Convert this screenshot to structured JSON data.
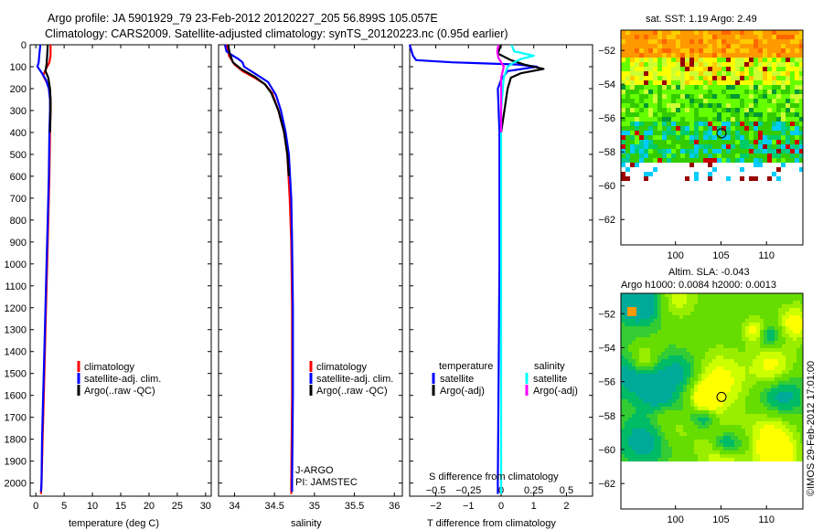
{
  "header": {
    "line1": "Argo profile: JA 5901929_79 23-Feb-2012 20120227_205 56.899S 105.057E",
    "line2": "Climatology: CARS2009. Satellite-adjusted climatology: synTS_20120223.nc (0.95d earlier)"
  },
  "colors": {
    "climatology": "#ff0000",
    "satellite": "#0000ff",
    "argo": "#000000",
    "satellite_salinity": "#00ffff",
    "argo_salinity": "#ff00ff"
  },
  "chart_data": [
    {
      "type": "line",
      "name": "temperature-profile",
      "xlabel": "temperature (deg C)",
      "ylabel": "",
      "xlim": [
        -1,
        31
      ],
      "ylim": [
        2060,
        0
      ],
      "xticks": [
        0,
        5,
        10,
        15,
        20,
        25,
        30
      ],
      "yticks": [
        0,
        100,
        200,
        300,
        400,
        500,
        600,
        700,
        800,
        900,
        1000,
        1100,
        1200,
        1300,
        1400,
        1500,
        1600,
        1700,
        1800,
        1900,
        2000
      ],
      "legend": [
        "climatology",
        "satellite-adj. clim.",
        "Argo(..raw -QC)"
      ],
      "legend_position": "lower-middle",
      "series": [
        {
          "name": "climatology",
          "color": "#ff0000",
          "points": [
            [
              2.6,
              0
            ],
            [
              2.6,
              50
            ],
            [
              2.4,
              80
            ],
            [
              1.8,
              110
            ],
            [
              1.3,
              140
            ],
            [
              1.9,
              170
            ],
            [
              2.4,
              200
            ],
            [
              2.6,
              250
            ],
            [
              2.6,
              300
            ],
            [
              2.5,
              400
            ],
            [
              2.4,
              600
            ],
            [
              2.2,
              800
            ],
            [
              2.0,
              1000
            ],
            [
              1.8,
              1200
            ],
            [
              1.6,
              1400
            ],
            [
              1.4,
              1600
            ],
            [
              1.2,
              1800
            ],
            [
              1.0,
              2000
            ],
            [
              0.9,
              2050
            ]
          ]
        },
        {
          "name": "satellite-adj. clim.",
          "color": "#0000ff",
          "points": [
            [
              0.8,
              0
            ],
            [
              0.6,
              50
            ],
            [
              0.5,
              80
            ],
            [
              0.3,
              100
            ],
            [
              1.1,
              130
            ],
            [
              1.8,
              160
            ],
            [
              2.3,
              200
            ],
            [
              2.5,
              250
            ],
            [
              2.5,
              300
            ],
            [
              2.4,
              400
            ],
            [
              2.3,
              600
            ],
            [
              2.1,
              800
            ],
            [
              1.9,
              1000
            ],
            [
              1.7,
              1200
            ],
            [
              1.5,
              1400
            ],
            [
              1.3,
              1600
            ],
            [
              1.1,
              1800
            ],
            [
              1.0,
              2000
            ],
            [
              0.9,
              2040
            ]
          ]
        },
        {
          "name": "Argo(..raw -QC)",
          "color": "#000000",
          "points": [
            [
              2.1,
              0
            ],
            [
              2.0,
              50
            ],
            [
              1.9,
              90
            ],
            [
              1.7,
              120
            ],
            [
              2.2,
              150
            ],
            [
              2.5,
              200
            ],
            [
              2.6,
              250
            ],
            [
              2.6,
              300
            ],
            [
              2.5,
              400
            ]
          ]
        }
      ]
    },
    {
      "type": "line",
      "name": "salinity-profile",
      "xlabel": "salinity",
      "xlim": [
        33.8,
        36.1
      ],
      "ylim": [
        2060,
        0
      ],
      "xticks": [
        34,
        34.5,
        35,
        35.5,
        36
      ],
      "legend": [
        "climatology",
        "satellite-adj. clim.",
        "Argo(..raw -QC)"
      ],
      "legend_position": "lower-right",
      "annotation": [
        "J-ARGO",
        "PI: JAMSTEC"
      ],
      "series": [
        {
          "name": "climatology",
          "color": "#ff0000",
          "points": [
            [
              33.9,
              0
            ],
            [
              33.93,
              50
            ],
            [
              34.0,
              90
            ],
            [
              34.1,
              120
            ],
            [
              34.25,
              150
            ],
            [
              34.38,
              180
            ],
            [
              34.47,
              220
            ],
            [
              34.55,
              300
            ],
            [
              34.62,
              400
            ],
            [
              34.66,
              500
            ],
            [
              34.69,
              700
            ],
            [
              34.71,
              900
            ],
            [
              34.72,
              1200
            ],
            [
              34.72,
              1600
            ],
            [
              34.71,
              2000
            ],
            [
              34.71,
              2050
            ]
          ]
        },
        {
          "name": "satellite-adj. clim.",
          "color": "#0000ff",
          "points": [
            [
              33.88,
              0
            ],
            [
              33.9,
              30
            ],
            [
              33.98,
              50
            ],
            [
              34.05,
              65
            ],
            [
              34.1,
              80
            ],
            [
              34.12,
              100
            ],
            [
              34.25,
              130
            ],
            [
              34.42,
              170
            ],
            [
              34.52,
              230
            ],
            [
              34.58,
              300
            ],
            [
              34.64,
              400
            ],
            [
              34.68,
              500
            ],
            [
              34.71,
              700
            ],
            [
              34.72,
              900
            ],
            [
              34.73,
              1200
            ],
            [
              34.73,
              1600
            ],
            [
              34.72,
              2000
            ],
            [
              34.72,
              2040
            ]
          ]
        },
        {
          "name": "Argo(..raw -QC)",
          "color": "#000000",
          "points": [
            [
              33.92,
              0
            ],
            [
              33.94,
              40
            ],
            [
              33.98,
              80
            ],
            [
              34.08,
              110
            ],
            [
              34.25,
              145
            ],
            [
              34.38,
              180
            ],
            [
              34.46,
              220
            ],
            [
              34.55,
              300
            ],
            [
              34.62,
              400
            ],
            [
              34.66,
              500
            ],
            [
              34.68,
              600
            ]
          ]
        }
      ]
    },
    {
      "type": "line",
      "name": "difference-profile",
      "xlabel": "T difference from climatology",
      "x2label": "S difference from climatology",
      "xlim": [
        -2.8,
        2.8
      ],
      "ylim": [
        2060,
        0
      ],
      "xticks": [
        -2,
        -1,
        0,
        1,
        2
      ],
      "xtick_labels": [
        "−2",
        "−1",
        "0",
        "1",
        "2"
      ],
      "x2lim": [
        -0.7,
        0.7
      ],
      "x2ticks": [
        -0.5,
        -0.25,
        0,
        0.25,
        0.5
      ],
      "x2tick_labels": [
        "−0.5",
        "−0.25",
        "0",
        "0.25",
        "0.5"
      ],
      "legend_titles": [
        "temperature",
        "salinity"
      ],
      "legend": [
        "satellite",
        "Argo(-adj)",
        "satellite",
        "Argo(-adj)"
      ],
      "legend_position": "lower-middle",
      "series": [
        {
          "name": "temperature satellite",
          "color": "#0000ff",
          "points": [
            [
              -2.8,
              0
            ],
            [
              -2.7,
              50
            ],
            [
              -2.6,
              70
            ],
            [
              -1.5,
              80
            ],
            [
              0.5,
              90
            ],
            [
              1.1,
              100
            ],
            [
              0.2,
              120
            ],
            [
              0.0,
              160
            ],
            [
              -0.1,
              200
            ],
            [
              -0.05,
              400
            ],
            [
              -0.05,
              1000
            ],
            [
              -0.1,
              2000
            ],
            [
              -0.1,
              2050
            ]
          ]
        },
        {
          "name": "temperature Argo(-adj)",
          "color": "#000000",
          "points": [
            [
              0.0,
              0
            ],
            [
              -0.1,
              40
            ],
            [
              0.3,
              70
            ],
            [
              0.7,
              90
            ],
            [
              1.3,
              110
            ],
            [
              0.6,
              130
            ],
            [
              0.3,
              150
            ],
            [
              0.2,
              200
            ],
            [
              0.1,
              300
            ],
            [
              0.0,
              400
            ]
          ]
        },
        {
          "name": "salinity satellite",
          "color": "#00ffff",
          "points": [
            [
              0.08,
              0
            ],
            [
              0.1,
              30
            ],
            [
              0.25,
              50
            ],
            [
              0.15,
              65
            ],
            [
              0.1,
              80
            ],
            [
              0.05,
              100
            ],
            [
              0.02,
              150
            ],
            [
              0.0,
              300
            ],
            [
              0.0,
              1000
            ],
            [
              0.0,
              2050
            ]
          ]
        },
        {
          "name": "salinity Argo(-adj)",
          "color": "#ff00ff",
          "points": [
            [
              -0.02,
              0
            ],
            [
              -0.03,
              30
            ],
            [
              -0.02,
              60
            ],
            [
              0.0,
              80
            ],
            [
              0.02,
              100
            ],
            [
              0.0,
              150
            ],
            [
              0.0,
              250
            ],
            [
              0.0,
              400
            ]
          ]
        }
      ]
    },
    {
      "type": "heatmap",
      "name": "sst-map",
      "title": "sat. SST: 1.19  Argo: 2.49",
      "xlim": [
        94,
        114
      ],
      "ylim": [
        -63.5,
        -50.8
      ],
      "xticks": [
        100,
        105,
        110
      ],
      "yticks": [
        -52,
        -54,
        -56,
        -58,
        -60,
        -62
      ],
      "ytick_labels": [
        "−52",
        "−54",
        "−56",
        "−58",
        "−60",
        "−62"
      ],
      "marker": [
        105.057,
        -56.899
      ]
    },
    {
      "type": "heatmap",
      "name": "sla-map",
      "title": "Altim. SLA: -0.043",
      "subtitle": "Argo h1000: 0.0084  h2000: 0.0013",
      "xlim": [
        94,
        114
      ],
      "ylim": [
        -63.5,
        -50.8
      ],
      "xticks": [
        100,
        105,
        110
      ],
      "yticks": [
        -52,
        -54,
        -56,
        -58,
        -60,
        -62
      ],
      "ytick_labels": [
        "−52",
        "−54",
        "−56",
        "−58",
        "−60",
        "−62"
      ],
      "marker": [
        105.057,
        -56.899
      ]
    }
  ],
  "credit": "©IMOS 29-Feb-2012 17:01:00"
}
